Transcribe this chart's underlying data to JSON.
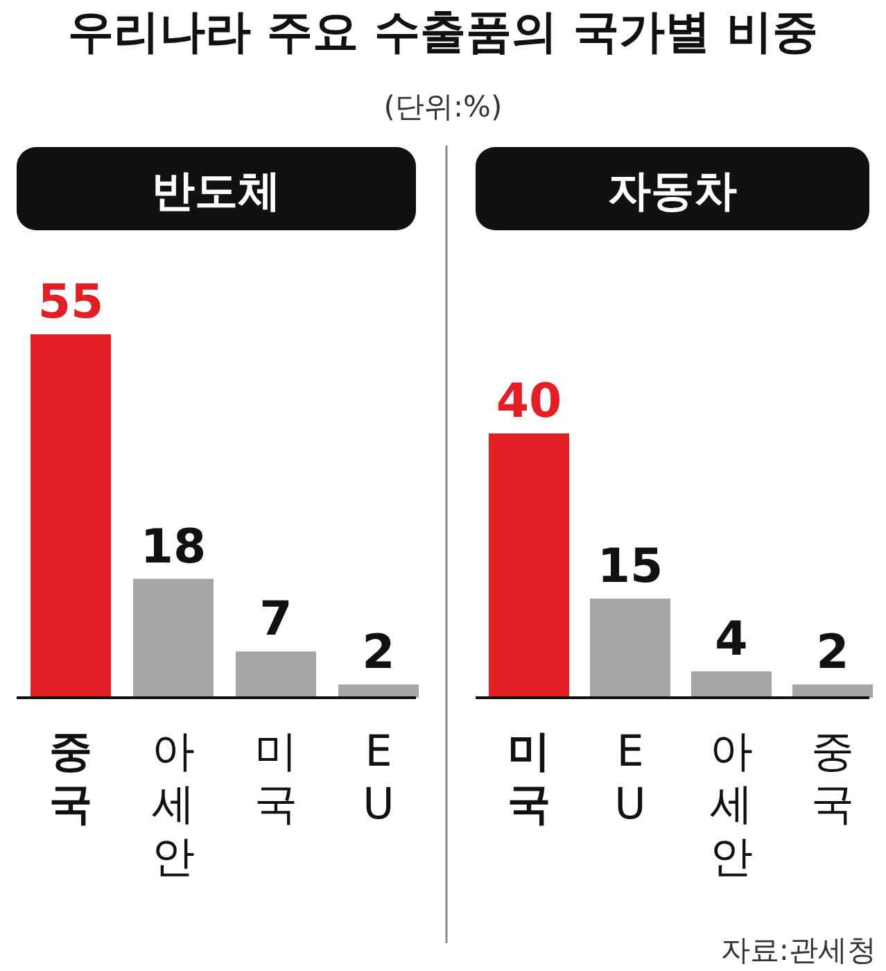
{
  "chart_data": [
    {
      "type": "bar",
      "title": "우리나라 주요 수출품의 국가별 비중",
      "subtitle": "반도체",
      "annotations": [
        "(단위:%)"
      ],
      "categories": [
        "중국",
        "아세안",
        "미국",
        "EU"
      ],
      "values": [
        55,
        18,
        7,
        2
      ],
      "colors": [
        "#e31e24",
        "#a6a6a6",
        "#a6a6a6",
        "#a6a6a6"
      ],
      "data_labels": true
    },
    {
      "type": "bar",
      "subtitle": "자동차",
      "annotations": [
        "자료:관세청"
      ],
      "categories": [
        "미국",
        "EU",
        "아세안",
        "중국"
      ],
      "values": [
        40,
        15,
        4,
        2
      ],
      "colors": [
        "#e31e24",
        "#a6a6a6",
        "#a6a6a6",
        "#a6a6a6"
      ],
      "data_labels": true
    }
  ]
}
